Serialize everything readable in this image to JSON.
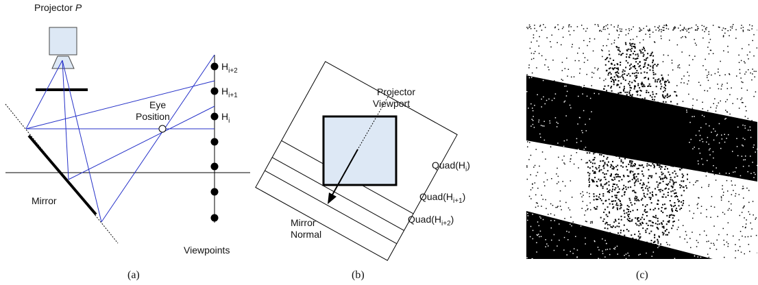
{
  "panel_a": {
    "projector": {
      "label": "Projector",
      "variable": "P"
    },
    "eye": [
      "Eye",
      "Position"
    ],
    "heights": [
      {
        "base": "H",
        "sub": "i+2"
      },
      {
        "base": "H",
        "sub": "i+1"
      },
      {
        "base": "H",
        "sub": "i"
      }
    ],
    "mirror": "Mirror",
    "viewpoints": "Viewpoints",
    "caption": "(a)"
  },
  "panel_b": {
    "viewport": [
      "Projector",
      "Viewport"
    ],
    "quads": [
      {
        "prefix": "Quad(H",
        "sub": "i",
        "suffix": ")"
      },
      {
        "prefix": "Quad(H",
        "sub": "i+1",
        "suffix": ")"
      },
      {
        "prefix": "Quad(H",
        "sub": "i+2",
        "suffix": ")"
      }
    ],
    "normal": [
      "Mirror",
      "Normal"
    ],
    "caption": "(b)"
  },
  "panel_c": {
    "caption": "(c)"
  }
}
